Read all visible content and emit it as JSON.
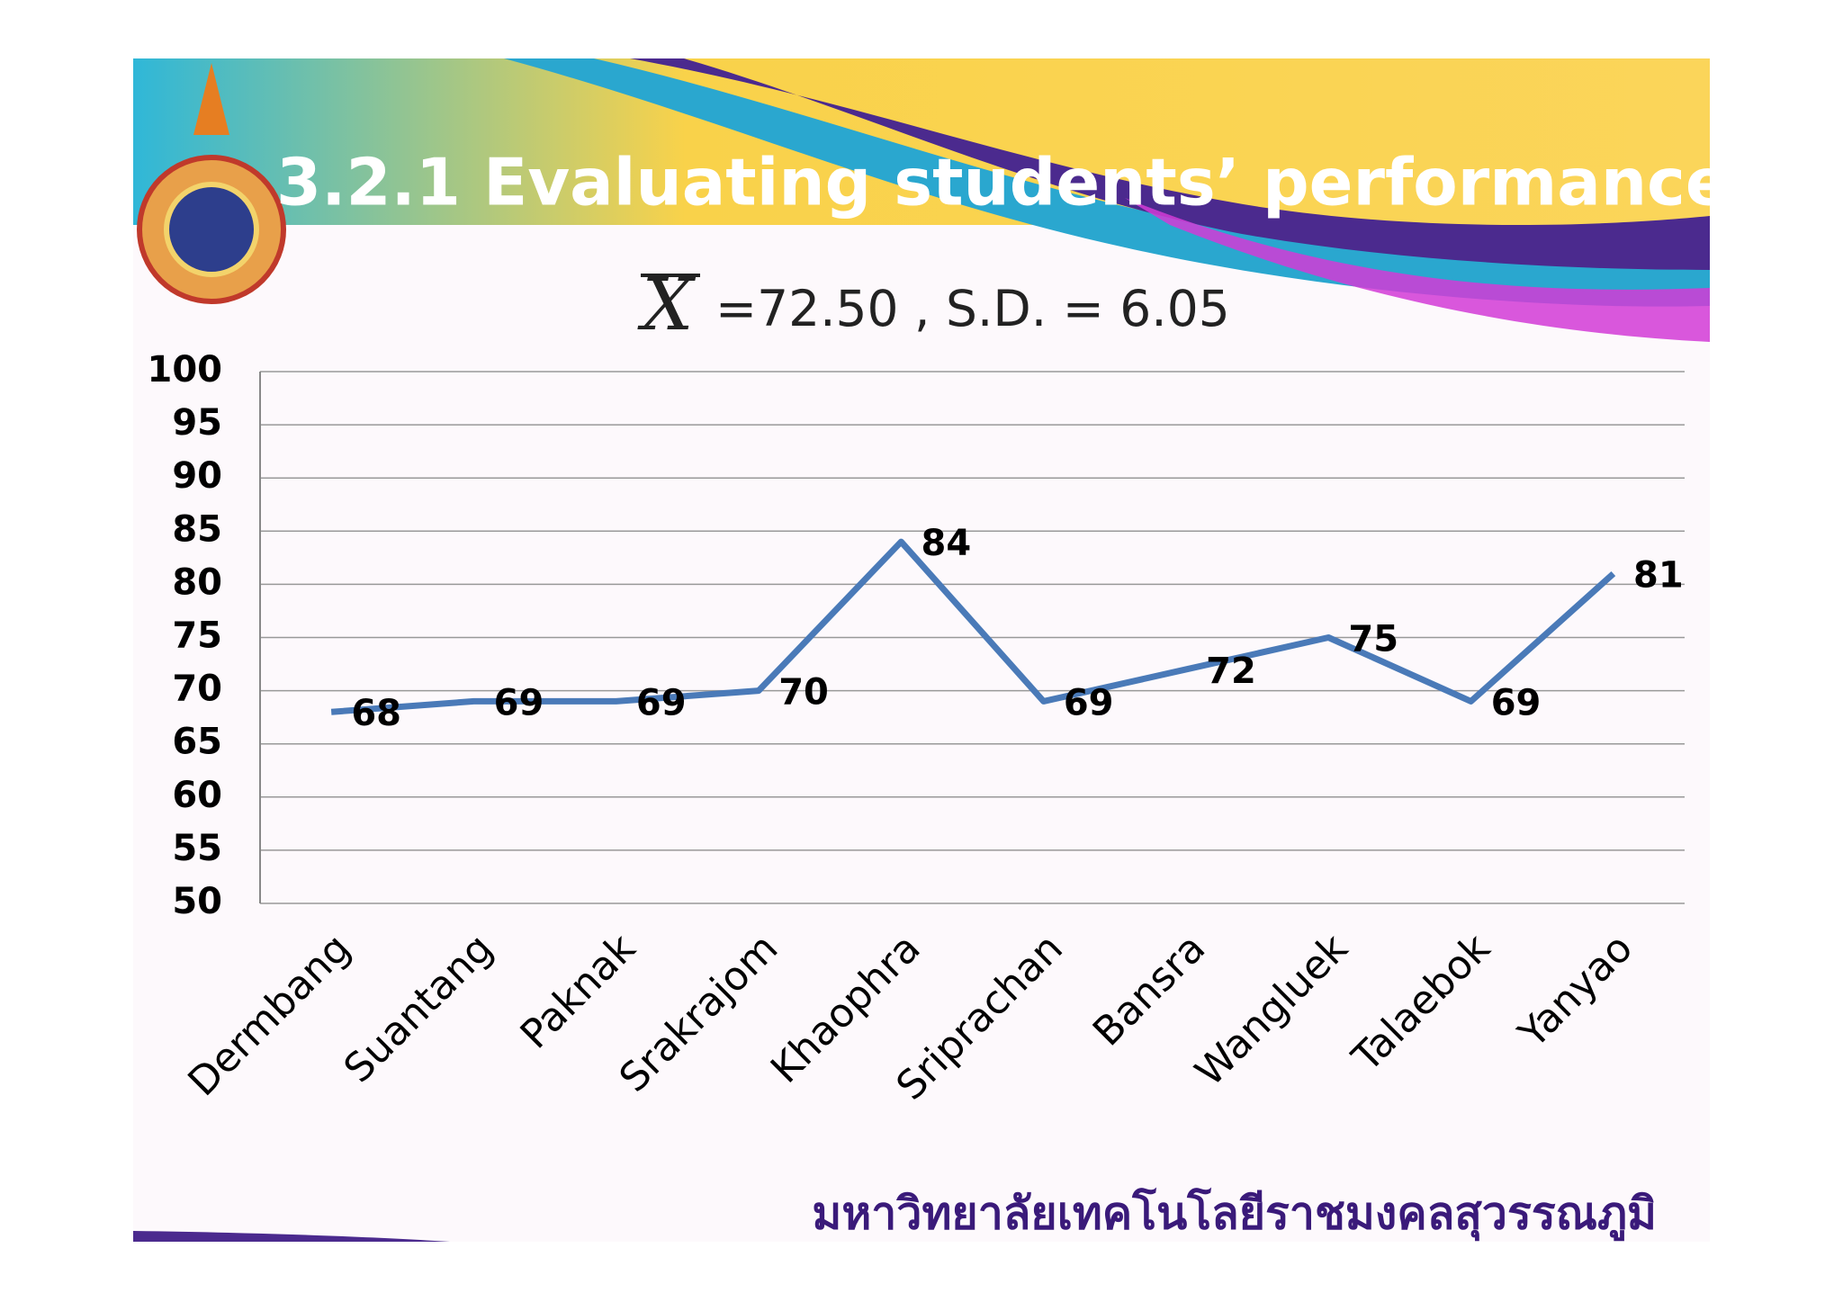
{
  "title": "3.2.1 Evaluating students’ performance",
  "subtitle_symbol": "X",
  "subtitle": "=72.50 , S.D. = 6.05",
  "footer": "มหาวิทยาลัยเทคโนโลยีราชมงคลสุวรรณภูมิ",
  "chart_data": {
    "type": "line",
    "categories": [
      "Dermbang",
      "Suantang",
      "Paknak",
      "Srakrajom",
      "Khaophra",
      "Sriprachan",
      "Bansra",
      "Wangluek",
      "Talaebok",
      "Yanyao"
    ],
    "values": [
      68,
      69,
      69,
      70,
      84,
      69,
      72,
      75,
      69,
      81
    ],
    "color": "#4a7ab8",
    "ylim": [
      50,
      100
    ],
    "yticks": [
      50,
      55,
      60,
      65,
      70,
      75,
      80,
      85,
      90,
      95,
      100
    ],
    "grid": true
  }
}
